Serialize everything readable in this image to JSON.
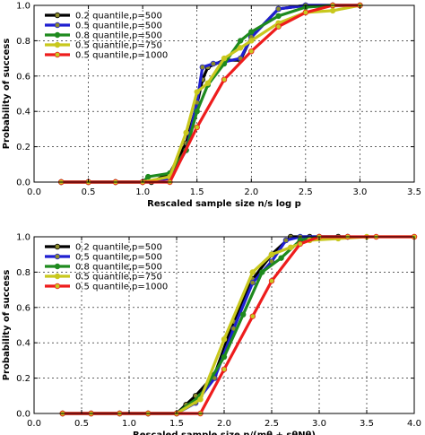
{
  "colors": {
    "series": [
      "#000000",
      "#1f1fd0",
      "#1e8a1e",
      "#c8c81e",
      "#ee1c1c"
    ],
    "marker_fill": [
      "#8a8a2a",
      "#8a8a2a",
      "#1e8a1e",
      "#c8c81e",
      "#c8c81e"
    ]
  },
  "chart_data": [
    {
      "type": "line",
      "xlabel": "Rescaled sample size n/s log p",
      "ylabel": "Probability of success",
      "xlim": [
        0.0,
        3.5
      ],
      "ylim": [
        0.0,
        1.0
      ],
      "xticks": [
        "0.0",
        "0.5",
        "1.0",
        "1.5",
        "2.0",
        "2.5",
        "3.0",
        "3.5"
      ],
      "yticks": [
        "0.0",
        "0.2",
        "0.4",
        "0.6",
        "0.8",
        "1.0"
      ],
      "grid": true,
      "legend": "upper-left",
      "series": [
        {
          "name": "0.2 quantile,p=500",
          "x": [
            0.25,
            0.5,
            0.75,
            1.0,
            1.08,
            1.25,
            1.4,
            1.5,
            1.55,
            1.6,
            1.75,
            1.9,
            2.0,
            2.25,
            2.5,
            2.75,
            3.0
          ],
          "y": [
            0.0,
            0.0,
            0.0,
            0.0,
            0.0,
            0.05,
            0.22,
            0.44,
            0.58,
            0.65,
            0.69,
            0.69,
            0.82,
            0.98,
            1.0,
            1.0,
            1.0
          ]
        },
        {
          "name": "0.5 quantile,p=500",
          "x": [
            0.25,
            0.5,
            0.75,
            1.0,
            1.25,
            1.4,
            1.5,
            1.55,
            1.65,
            1.75,
            1.9,
            2.0,
            2.25,
            2.5,
            2.75,
            3.0
          ],
          "y": [
            0.0,
            0.0,
            0.0,
            0.0,
            0.02,
            0.18,
            0.45,
            0.65,
            0.67,
            0.68,
            0.7,
            0.82,
            0.98,
            1.0,
            1.0,
            1.0
          ]
        },
        {
          "name": "0.8 quantile,p=500",
          "x": [
            0.25,
            0.5,
            0.75,
            1.0,
            1.05,
            1.25,
            1.4,
            1.5,
            1.6,
            1.75,
            1.9,
            2.0,
            2.25,
            2.5,
            2.75,
            3.0
          ],
          "y": [
            0.0,
            0.0,
            0.0,
            0.0,
            0.03,
            0.05,
            0.18,
            0.4,
            0.55,
            0.67,
            0.8,
            0.85,
            0.94,
            0.99,
            1.0,
            1.0
          ]
        },
        {
          "name": "0.5 quantile,p=750",
          "x": [
            0.25,
            0.5,
            0.75,
            1.0,
            1.25,
            1.4,
            1.5,
            1.6,
            1.75,
            1.9,
            2.0,
            2.25,
            2.5,
            2.75,
            3.0
          ],
          "y": [
            0.0,
            0.0,
            0.0,
            0.0,
            0.03,
            0.28,
            0.51,
            0.56,
            0.7,
            0.76,
            0.8,
            0.9,
            0.96,
            0.97,
            1.0
          ]
        },
        {
          "name": "0.5 quantile,p=1000",
          "x": [
            0.25,
            0.5,
            0.75,
            1.0,
            1.25,
            1.5,
            1.75,
            2.0,
            2.25,
            2.5,
            2.75,
            3.0
          ],
          "y": [
            0.0,
            0.0,
            0.0,
            0.0,
            0.0,
            0.31,
            0.58,
            0.74,
            0.88,
            0.96,
            1.0,
            1.0
          ]
        }
      ]
    },
    {
      "type": "line",
      "xlabel": "Rescaled sample size n/(mθ + sθNθ)",
      "ylabel": "Probability of success",
      "xlim": [
        0.0,
        4.0
      ],
      "ylim": [
        0.0,
        1.0
      ],
      "xticks": [
        "0.0",
        "0.5",
        "1.0",
        "1.5",
        "2.0",
        "2.5",
        "3.0",
        "3.5",
        "4.0"
      ],
      "yticks": [
        "0.0",
        "0.2",
        "0.4",
        "0.6",
        "0.8",
        "1.0"
      ],
      "grid": true,
      "legend": "upper-left",
      "series": [
        {
          "name": "0.2 quantile,p=500",
          "x": [
            0.3,
            0.6,
            0.9,
            1.2,
            1.5,
            1.6,
            1.7,
            1.9,
            2.1,
            2.3,
            2.5,
            2.7,
            2.9,
            3.2
          ],
          "y": [
            0.0,
            0.0,
            0.0,
            0.0,
            0.0,
            0.05,
            0.1,
            0.22,
            0.52,
            0.76,
            0.9,
            1.0,
            1.0,
            1.0
          ]
        },
        {
          "name": "0.5 quantile,p=500",
          "x": [
            0.3,
            0.6,
            0.9,
            1.2,
            1.5,
            1.7,
            1.9,
            2.1,
            2.3,
            2.5,
            2.65,
            2.8,
            3.0,
            3.3
          ],
          "y": [
            0.0,
            0.0,
            0.0,
            0.0,
            0.0,
            0.06,
            0.2,
            0.48,
            0.74,
            0.86,
            0.98,
            1.0,
            1.0,
            1.0
          ]
        },
        {
          "name": "0.8 quantile,p=500",
          "x": [
            0.3,
            0.6,
            0.9,
            1.2,
            1.5,
            1.75,
            2.0,
            2.2,
            2.4,
            2.6,
            2.8,
            3.0,
            3.3
          ],
          "y": [
            0.0,
            0.0,
            0.0,
            0.0,
            0.0,
            0.1,
            0.32,
            0.56,
            0.8,
            0.88,
            0.98,
            1.0,
            1.0
          ]
        },
        {
          "name": "0.5 quantile,p=750",
          "x": [
            0.3,
            0.6,
            0.9,
            1.2,
            1.5,
            1.75,
            2.0,
            2.3,
            2.5,
            2.7,
            2.9,
            3.2,
            3.5,
            4.0
          ],
          "y": [
            0.0,
            0.0,
            0.0,
            0.0,
            0.0,
            0.08,
            0.42,
            0.8,
            0.9,
            0.94,
            0.98,
            0.99,
            1.0,
            1.0
          ]
        },
        {
          "name": "0.5 quantile,p=1000",
          "x": [
            0.3,
            0.6,
            0.9,
            1.2,
            1.5,
            1.75,
            2.0,
            2.3,
            2.5,
            2.8,
            3.0,
            3.3,
            3.6,
            4.0
          ],
          "y": [
            0.0,
            0.0,
            0.0,
            0.0,
            0.0,
            0.0,
            0.25,
            0.55,
            0.75,
            0.96,
            1.0,
            1.0,
            1.0,
            1.0
          ]
        }
      ]
    }
  ]
}
